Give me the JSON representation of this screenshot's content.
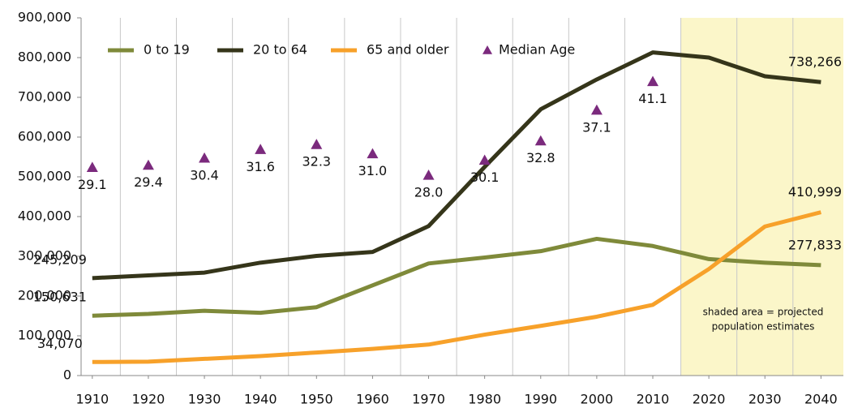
{
  "chart_data": {
    "type": "line",
    "x": [
      1910,
      1920,
      1930,
      1940,
      1950,
      1960,
      1970,
      1980,
      1990,
      2000,
      2010,
      2020,
      2030,
      2040
    ],
    "xticks": [
      1910,
      1920,
      1930,
      1940,
      1950,
      1960,
      1970,
      1980,
      1990,
      2000,
      2010,
      2020,
      2030,
      2040
    ],
    "xlim": [
      1908,
      2044
    ],
    "ylim": [
      0,
      900000
    ],
    "yticks": [
      0,
      {
        "value": 100000,
        "label": "100,000"
      },
      {
        "value": 200000,
        "label": "200,000"
      },
      {
        "value": 300000,
        "label": "300,000"
      },
      {
        "value": 400000,
        "label": "400,000"
      },
      {
        "value": 500000,
        "label": "500,000"
      },
      {
        "value": 600000,
        "label": "600,000"
      },
      {
        "value": 700000,
        "label": "700,000"
      },
      {
        "value": 800000,
        "label": "800,000"
      },
      {
        "value": 900000,
        "label": "900,000"
      }
    ],
    "y2lim": [
      0,
      50
    ],
    "grid": true,
    "shaded_xlim": [
      2015,
      2044
    ],
    "shade_color": "#fbf6c9",
    "annotation": [
      "shaded area = projected",
      "population estimates"
    ],
    "series": [
      {
        "name": "0 to 19",
        "color": "#7f8a3a",
        "values": [
          150631,
          155000,
          163000,
          158000,
          172000,
          227000,
          282000,
          297000,
          313000,
          344000,
          326000,
          293000,
          284000,
          277833
        ],
        "value_labels": [
          "150,631",
          null,
          null,
          null,
          null,
          null,
          null,
          null,
          null,
          null,
          null,
          null,
          null,
          "277,833"
        ]
      },
      {
        "name": "20 to 64",
        "color": "#35351a",
        "values": [
          245209,
          252000,
          259000,
          284000,
          301000,
          311000,
          376000,
          525000,
          670000,
          745000,
          813000,
          800000,
          753000,
          738266
        ],
        "value_labels": [
          "245,209",
          null,
          null,
          null,
          null,
          null,
          null,
          null,
          null,
          null,
          null,
          null,
          null,
          "738,266"
        ]
      },
      {
        "name": "65 and older",
        "color": "#f7a12a",
        "values": [
          34070,
          35000,
          42000,
          49000,
          58000,
          67000,
          78000,
          103000,
          125000,
          148000,
          178000,
          268000,
          375000,
          410999
        ],
        "value_labels": [
          "34,070",
          null,
          null,
          null,
          null,
          null,
          null,
          null,
          null,
          null,
          null,
          null,
          null,
          "410,999"
        ]
      },
      {
        "name": "Median Age",
        "color": "#7b2a7d",
        "marker": "triangle",
        "axis": "y2",
        "values": [
          29.1,
          29.4,
          30.4,
          31.6,
          32.3,
          31.0,
          28.0,
          30.1,
          32.8,
          37.1,
          41.1,
          null,
          null,
          null
        ],
        "value_labels": [
          "29.1",
          "29.4",
          "30.4",
          "31.6",
          "32.3",
          "31.0",
          "28.0",
          "30.1",
          "32.8",
          "37.1",
          "41.1",
          null,
          null,
          null
        ]
      }
    ]
  }
}
